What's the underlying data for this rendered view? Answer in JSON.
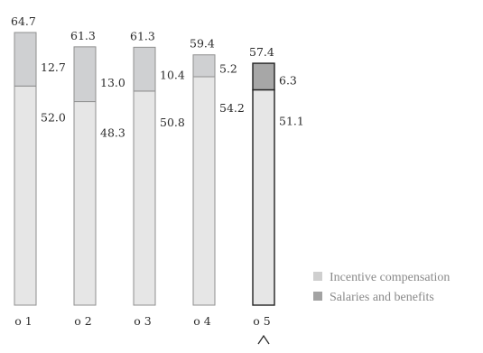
{
  "chart_data": {
    "type": "bar",
    "stacked": true,
    "categories": [
      "01",
      "02",
      "03",
      "04",
      "05"
    ],
    "category_labels": [
      "o1",
      "o2",
      "o3",
      "o4",
      "o5"
    ],
    "totals": [
      64.7,
      61.3,
      61.3,
      59.4,
      57.4
    ],
    "total_labels": [
      "64.7",
      "61.3",
      "61.3",
      "59.4",
      "57.4"
    ],
    "series": [
      {
        "name": "Incentive compensation",
        "values": [
          52.0,
          48.3,
          50.8,
          54.2,
          51.1
        ],
        "labels": [
          "52.0",
          "48.3",
          "50.8",
          "54.2",
          "51.1"
        ],
        "color": "#e6e6e6"
      },
      {
        "name": "Salaries and benefits",
        "values": [
          12.7,
          13.0,
          10.4,
          5.2,
          6.3
        ],
        "labels": [
          "12.7",
          "13.0",
          "10.4",
          "5.2",
          "6.3"
        ],
        "color": "#cfd0d2",
        "highlight_color": "#a7a7a7"
      }
    ],
    "highlight_index": 4,
    "ylim": [
      0,
      64.7
    ],
    "grid": false,
    "legend_position": "bottom-right",
    "legend": [
      {
        "label": "Incentive compensation",
        "color": "#cfcfcf"
      },
      {
        "label": "Salaries and benefits",
        "color": "#a3a3a3"
      }
    ],
    "colors": {
      "bar_outline": "#8f8f8f",
      "highlight_outline": "#222222",
      "text": "#2b2b2b",
      "legend_text": "#8a8a8a"
    }
  }
}
